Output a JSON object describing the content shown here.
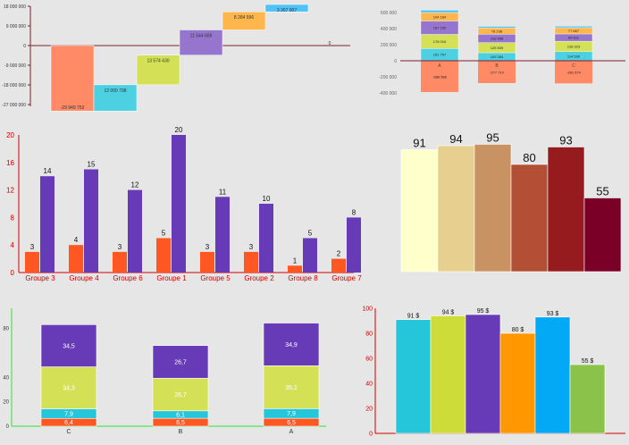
{
  "colors": {
    "axis_dark": "#7a2030",
    "axis_red": "#d00000",
    "axis_green": "#30e030",
    "background": "#e6e6e6"
  },
  "chart_data": [
    {
      "id": "waterfall",
      "type": "bar",
      "title": "",
      "y_ticks": [
        "18 000 000",
        "9 000 000",
        "0",
        "-9 000 000",
        "-18 000 000",
        "-27 000 000"
      ],
      "ylim": [
        -27000000,
        18000000
      ],
      "values": [
        -29949753,
        12000798,
        13574430,
        11544659,
        8284596,
        3357907,
        0
      ],
      "labels": [
        "-29 949 753",
        "12 000 798",
        "13 574 430",
        "11 544 659",
        "8 284 596",
        "3 357 907",
        "0"
      ],
      "colors": [
        "#ff8a65",
        "#4dd0e1",
        "#d4e157",
        "#9575cd",
        "#ffb74d",
        "#4fc3f7",
        "#e0e0e0"
      ]
    },
    {
      "id": "stacked-small",
      "type": "bar",
      "title": "",
      "y_ticks": [
        "600 000",
        "400 000",
        "200 000",
        "0",
        "-200 000",
        "-400 000"
      ],
      "ylim": [
        -400000,
        600000
      ],
      "categories": [
        "A",
        "B",
        "C"
      ],
      "series": [
        {
          "color": "#ff8a65",
          "values": [
            -388586,
            -277710,
            -281674
          ],
          "labels": [
            "-388 586",
            "-277 710",
            "-281 674"
          ]
        },
        {
          "color": "#4dd0e1",
          "values": [
            151757,
            100284,
            114530
          ],
          "labels": [
            "151 757",
            "100 284",
            "114 530"
          ]
        },
        {
          "color": "#d4e157",
          "values": [
            176016,
            125505,
            128323
          ],
          "labels": [
            "176 016",
            "125 505",
            "128 323"
          ]
        },
        {
          "color": "#9575cd",
          "values": [
            167150,
            103958,
            90811
          ],
          "labels": [
            "167 150",
            "103 958",
            "90 811"
          ]
        },
        {
          "color": "#ffb74d",
          "values": [
            104184,
            78238,
            77667
          ],
          "labels": [
            "104 184",
            "78 238",
            "77 667"
          ]
        },
        {
          "color": "#4fc3f7",
          "values": [
            30000,
            20000,
            20000
          ],
          "labels": [
            "",
            "",
            ""
          ]
        }
      ]
    },
    {
      "id": "grouped",
      "type": "bar",
      "title": "",
      "y_ticks": [
        "20",
        "16",
        "12",
        "8",
        "4",
        "0"
      ],
      "ylim": [
        0,
        20
      ],
      "categories": [
        "Groupe 3",
        "Groupe 4",
        "Groupe 6",
        "Groupe 1",
        "Groupe 5",
        "Groupe 2",
        "Groupe 8",
        "Groupe 7"
      ],
      "series": [
        {
          "color": "#ff5722",
          "values": [
            3,
            4,
            3,
            5,
            3,
            3,
            1,
            2
          ]
        },
        {
          "color": "#673ab7",
          "values": [
            14,
            15,
            12,
            20,
            11,
            10,
            5,
            8
          ]
        }
      ]
    },
    {
      "id": "plain-bars",
      "type": "bar",
      "title": "",
      "values": [
        91,
        94,
        95,
        80,
        93,
        55
      ],
      "colors": [
        "#ffffcc",
        "#e6cf8f",
        "#c99262",
        "#b24f35",
        "#961b1e",
        "#7a0027"
      ]
    },
    {
      "id": "stacked-big",
      "type": "bar",
      "title": "",
      "y_ticks": [
        "80",
        "40",
        "20",
        "0"
      ],
      "ylim": [
        0,
        87
      ],
      "categories": [
        "C",
        "B",
        "A"
      ],
      "series": [
        {
          "color": "#ff5722",
          "values": [
            6.4,
            6.5,
            6.5
          ],
          "labels": [
            "6,4",
            "6,5",
            "6,5"
          ]
        },
        {
          "color": "#26c6da",
          "values": [
            7.9,
            6.1,
            7.9
          ],
          "labels": [
            "7,9",
            "6,1",
            "7,9"
          ]
        },
        {
          "color": "#d4e157",
          "values": [
            34.3,
            26.7,
            35.1
          ],
          "labels": [
            "34,3",
            "26,7",
            "35,1"
          ]
        },
        {
          "color": "#673ab7",
          "values": [
            34.5,
            26.7,
            34.9
          ],
          "labels": [
            "34,5",
            "26,7",
            "34,9"
          ]
        }
      ]
    },
    {
      "id": "dollar-bars",
      "type": "bar",
      "title": "",
      "y_ticks": [
        "100",
        "80",
        "60",
        "40",
        "20",
        "0"
      ],
      "ylim": [
        0,
        100
      ],
      "values": [
        91,
        94,
        95,
        80,
        93,
        55
      ],
      "labels": [
        "91 $",
        "94 $",
        "95 $",
        "80 $",
        "93 $",
        "55 $"
      ],
      "colors": [
        "#26c6da",
        "#cddc39",
        "#673ab7",
        "#ff9800",
        "#03a9f4",
        "#8bc34a"
      ]
    }
  ]
}
